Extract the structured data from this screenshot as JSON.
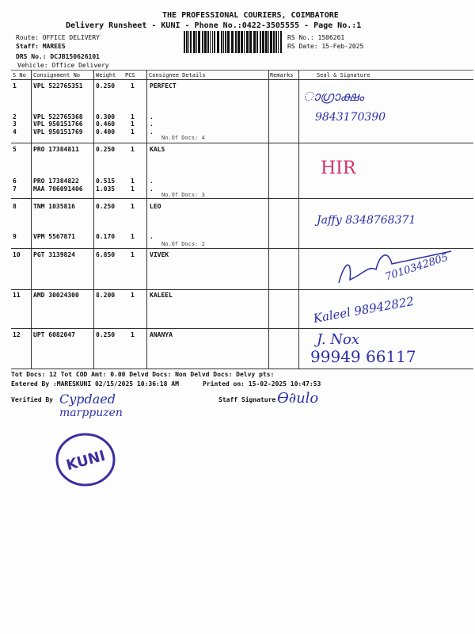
{
  "header": {
    "company": "THE PROFESSIONAL COURIERS, COIMBATORE",
    "subtitle": "Delivery Runsheet - KUNI - Phone No.:0422-3505555 - Page No.:1",
    "route": "Route: OFFICE DELIVERY",
    "staff": "Staff: MAREES",
    "drs_no": "DRS No.: DCJB150626101",
    "vehicle": "Vehicle: Office Delivery",
    "rs_no": "RS No.: 1506261",
    "rs_date": "RS Date: 15-Feb-2025"
  },
  "table": {
    "columns": [
      "S No",
      "Consignment No",
      "Weight",
      "PCS",
      "Consignee Details",
      "Remarks",
      "Seal & Signature"
    ],
    "rows": [
      {
        "sno": "1",
        "cons": "VPL 522765351",
        "weight": "0.250",
        "pcs": "1",
        "details": "PERFECT"
      },
      {
        "sno": "2",
        "cons": "VPL 522765368",
        "weight": "0.300",
        "pcs": "1",
        "details": "."
      },
      {
        "sno": "3",
        "cons": "VPL 950151766",
        "weight": "0.460",
        "pcs": "1",
        "details": "."
      },
      {
        "sno": "4",
        "cons": "VPL 950151769",
        "weight": "0.400",
        "pcs": "1",
        "details": "."
      },
      {
        "sno": "5",
        "cons": "PRO 17384811",
        "weight": "0.250",
        "pcs": "1",
        "details": "KALS"
      },
      {
        "sno": "6",
        "cons": "PRO 17384822",
        "weight": "0.515",
        "pcs": "1",
        "details": "."
      },
      {
        "sno": "7",
        "cons": "MAA 706091406",
        "weight": "1.035",
        "pcs": "1",
        "details": "."
      },
      {
        "sno": "8",
        "cons": "TNM 1035816",
        "weight": "0.250",
        "pcs": "1",
        "details": "LEO"
      },
      {
        "sno": "9",
        "cons": "VPM 5567871",
        "weight": "0.170",
        "pcs": "1",
        "details": "."
      },
      {
        "sno": "10",
        "cons": "PGT 3139824",
        "weight": "6.850",
        "pcs": "1",
        "details": "VIVEK"
      },
      {
        "sno": "11",
        "cons": "AMD 30024300",
        "weight": "8.200",
        "pcs": "1",
        "details": "KALEEL"
      },
      {
        "sno": "12",
        "cons": "UPT 6082047",
        "weight": "0.250",
        "pcs": "1",
        "details": "ANANYA"
      }
    ],
    "doc_counts": [
      "No.Of Docs: 4",
      "No.Of Docs: 3",
      "No.Of Docs: 2"
    ],
    "handwritten": [
      "9843170390",
      "HIR",
      "Jaffy 8348768371",
      "7010342805",
      "Kaleel 98942822",
      "J. Nox",
      "99949 66117"
    ]
  },
  "footer": {
    "totals": "Tot Docs:  12    Tot COD Amt:     0.00    Delvd Docs:     Non Delvd Docs:    Delvy pts:",
    "entered": "Entered By :MARESKUNI 02/15/2025 10:36:18 AM",
    "printed": "Printed on: 15-02-2025 10:47:53",
    "verified": "Verified By",
    "staff_sig": "Staff Signature",
    "stamp": "KUNI"
  },
  "colors": {
    "ink": "#2b2fa8",
    "stamp": "#3a2fa0",
    "pink": "#d0306a"
  }
}
